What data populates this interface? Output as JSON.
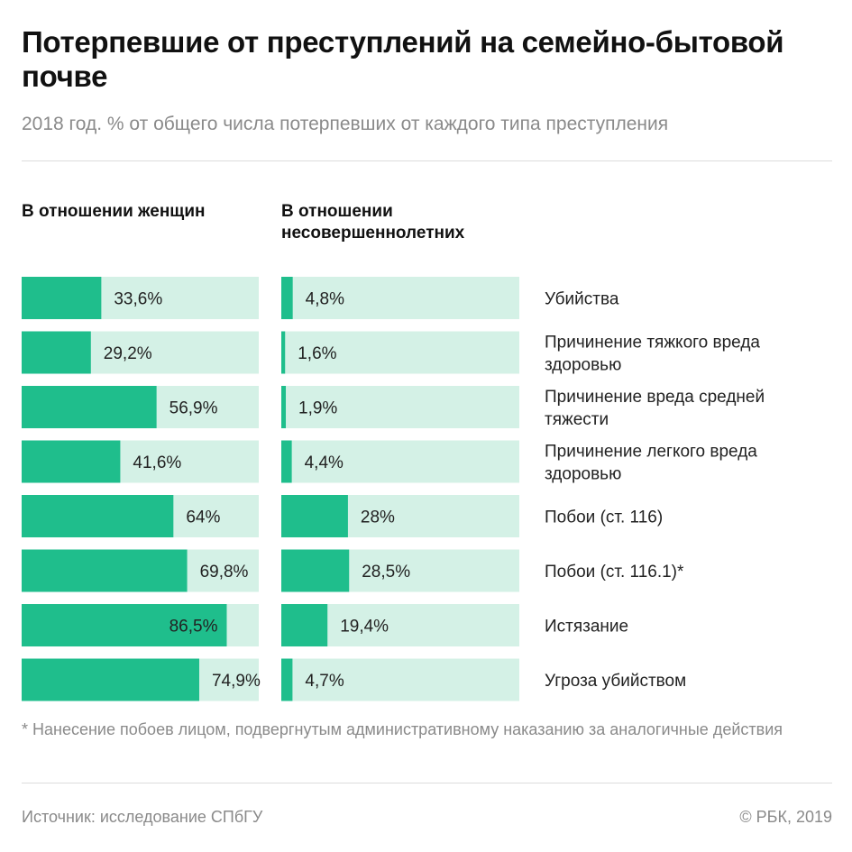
{
  "header": {
    "title": "Потерпевшие от преступлений на семейно-бытовой почве",
    "subtitle": "2018 год. % от общего числа потерпевших от каждого типа преступления"
  },
  "columns": {
    "women": "В отношении женщин",
    "minors": "В отношении несовершеннолетних"
  },
  "colors": {
    "bar_fill": "#1fbe8c",
    "bar_track": "#d4f1e6"
  },
  "chart_data": {
    "type": "bar",
    "orientation": "horizontal",
    "title": "Потерпевшие от преступлений на семейно-бытовой почве",
    "subtitle": "2018 год. % от общего числа потерпевших от каждого типа преступления",
    "xlim": [
      0,
      100
    ],
    "categories": [
      "Убийства",
      "Причинение тяжкого вреда здоровью",
      "Причинение вреда средней тяжести",
      "Причинение легкого вреда здоровью",
      "Побои (ст. 116)",
      "Побои (ст. 116.1)*",
      "Истязание",
      "Угроза убийством"
    ],
    "series": [
      {
        "name": "В отношении женщин",
        "values": [
          33.6,
          29.2,
          56.9,
          41.6,
          64,
          69.8,
          86.5,
          74.9
        ],
        "labels": [
          "33,6%",
          "29,2%",
          "56,9%",
          "41,6%",
          "64%",
          "69,8%",
          "86,5%",
          "74,9%"
        ]
      },
      {
        "name": "В отношении несовершеннолетних",
        "values": [
          4.8,
          1.6,
          1.9,
          4.4,
          28,
          28.5,
          19.4,
          4.7
        ],
        "labels": [
          "4,8%",
          "1,6%",
          "1,9%",
          "4,4%",
          "28%",
          "28,5%",
          "19,4%",
          "4,7%"
        ]
      }
    ]
  },
  "footnote": "* Нанесение побоев лицом, подвергнутым административному наказанию за аналогичные действия",
  "footer": {
    "source": "Источник: исследование СПбГУ",
    "copyright": "© РБК, 2019"
  }
}
